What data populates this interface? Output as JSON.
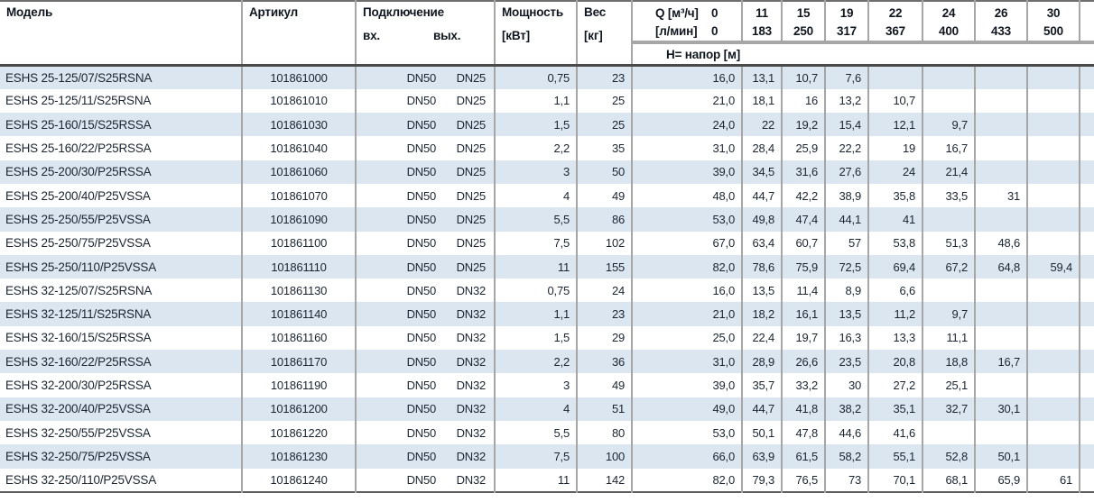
{
  "header": {
    "col_model": "Модель",
    "col_article": "Артикул",
    "col_connection": "Подключение",
    "col_connection_in": "вх.",
    "col_connection_out": "вых.",
    "col_power_l1": "Мощность",
    "col_power_l2": "[кВт]",
    "col_weight_l1": "Вес",
    "col_weight_l2": "[кг]",
    "q_label_l1": "Q [м³/ч]",
    "q_zero_l1": "0",
    "q_label_l2": "[л/мин]",
    "q_zero_l2": "0",
    "q_columns": [
      {
        "m3h": "11",
        "lmin": "183"
      },
      {
        "m3h": "15",
        "lmin": "250"
      },
      {
        "m3h": "19",
        "lmin": "317"
      },
      {
        "m3h": "22",
        "lmin": "367"
      },
      {
        "m3h": "24",
        "lmin": "400"
      },
      {
        "m3h": "26",
        "lmin": "433"
      },
      {
        "m3h": "30",
        "lmin": "500"
      }
    ],
    "head_row_label": "Н= напор [м]"
  },
  "rows": [
    {
      "model": "ESHS 25-125/07/S25RSNA",
      "article": "101861000",
      "dn_in": "DN50",
      "dn_out": "DN25",
      "power": "0,75",
      "weight": "23",
      "h": [
        "16,0",
        "13,1",
        "10,7",
        "7,6",
        "",
        "",
        "",
        ""
      ]
    },
    {
      "model": "ESHS 25-125/11/S25RSNA",
      "article": "101861010",
      "dn_in": "DN50",
      "dn_out": "DN25",
      "power": "1,1",
      "weight": "25",
      "h": [
        "21,0",
        "18,1",
        "16",
        "13,2",
        "10,7",
        "",
        "",
        ""
      ]
    },
    {
      "model": "ESHS 25-160/15/S25RSSA",
      "article": "101861030",
      "dn_in": "DN50",
      "dn_out": "DN25",
      "power": "1,5",
      "weight": "25",
      "h": [
        "24,0",
        "22",
        "19,2",
        "15,4",
        "12,1",
        "9,7",
        "",
        ""
      ]
    },
    {
      "model": "ESHS 25-160/22/P25RSSA",
      "article": "101861040",
      "dn_in": "DN50",
      "dn_out": "DN25",
      "power": "2,2",
      "weight": "35",
      "h": [
        "31,0",
        "28,4",
        "25,9",
        "22,2",
        "19",
        "16,7",
        "",
        ""
      ]
    },
    {
      "model": "ESHS 25-200/30/P25RSSA",
      "article": "101861060",
      "dn_in": "DN50",
      "dn_out": "DN25",
      "power": "3",
      "weight": "50",
      "h": [
        "39,0",
        "34,5",
        "31,6",
        "27,6",
        "24",
        "21,4",
        "",
        ""
      ]
    },
    {
      "model": "ESHS 25-200/40/P25VSSA",
      "article": "101861070",
      "dn_in": "DN50",
      "dn_out": "DN25",
      "power": "4",
      "weight": "49",
      "h": [
        "48,0",
        "44,7",
        "42,2",
        "38,9",
        "35,8",
        "33,5",
        "31",
        ""
      ]
    },
    {
      "model": "ESHS 25-250/55/P25VSSA",
      "article": "101861090",
      "dn_in": "DN50",
      "dn_out": "DN25",
      "power": "5,5",
      "weight": "86",
      "h": [
        "53,0",
        "49,8",
        "47,4",
        "44,1",
        "41",
        "",
        "",
        ""
      ]
    },
    {
      "model": "ESHS 25-250/75/P25VSSA",
      "article": "101861100",
      "dn_in": "DN50",
      "dn_out": "DN25",
      "power": "7,5",
      "weight": "102",
      "h": [
        "67,0",
        "63,4",
        "60,7",
        "57",
        "53,8",
        "51,3",
        "48,6",
        ""
      ]
    },
    {
      "model": "ESHS 25-250/110/P25VSSA",
      "article": "101861110",
      "dn_in": "DN50",
      "dn_out": "DN25",
      "power": "11",
      "weight": "155",
      "h": [
        "82,0",
        "78,6",
        "75,9",
        "72,5",
        "69,4",
        "67,2",
        "64,8",
        "59,4"
      ]
    },
    {
      "model": "ESHS 32-125/07/S25RSNA",
      "article": "101861130",
      "dn_in": "DN50",
      "dn_out": "DN32",
      "power": "0,75",
      "weight": "24",
      "h": [
        "16,0",
        "13,5",
        "11,4",
        "8,9",
        "6,6",
        "",
        "",
        ""
      ]
    },
    {
      "model": "ESHS 32-125/11/S25RSNA",
      "article": "101861140",
      "dn_in": "DN50",
      "dn_out": "DN32",
      "power": "1,1",
      "weight": "23",
      "h": [
        "21,0",
        "18,2",
        "16,1",
        "13,5",
        "11,2",
        "9,7",
        "",
        ""
      ]
    },
    {
      "model": "ESHS 32-160/15/S25RSSA",
      "article": "101861160",
      "dn_in": "DN50",
      "dn_out": "DN32",
      "power": "1,5",
      "weight": "29",
      "h": [
        "25,0",
        "22,4",
        "19,7",
        "16,3",
        "13,3",
        "11,1",
        "",
        ""
      ]
    },
    {
      "model": "ESHS 32-160/22/P25RSSA",
      "article": "101861170",
      "dn_in": "DN50",
      "dn_out": "DN32",
      "power": "2,2",
      "weight": "36",
      "h": [
        "31,0",
        "28,9",
        "26,6",
        "23,5",
        "20,8",
        "18,8",
        "16,7",
        ""
      ]
    },
    {
      "model": "ESHS 32-200/30/P25RSSA",
      "article": "101861190",
      "dn_in": "DN50",
      "dn_out": "DN32",
      "power": "3",
      "weight": "49",
      "h": [
        "39,0",
        "35,7",
        "33,2",
        "30",
        "27,2",
        "25,1",
        "",
        ""
      ]
    },
    {
      "model": "ESHS 32-200/40/P25VSSA",
      "article": "101861200",
      "dn_in": "DN50",
      "dn_out": "DN32",
      "power": "4",
      "weight": "51",
      "h": [
        "49,0",
        "44,7",
        "41,8",
        "38,2",
        "35,1",
        "32,7",
        "30,1",
        ""
      ]
    },
    {
      "model": "ESHS 32-250/55/P25VSSA",
      "article": "101861220",
      "dn_in": "DN50",
      "dn_out": "DN32",
      "power": "5,5",
      "weight": "80",
      "h": [
        "53,0",
        "50,1",
        "47,8",
        "44,6",
        "41,6",
        "",
        "",
        ""
      ]
    },
    {
      "model": "ESHS 32-250/75/P25VSSA",
      "article": "101861230",
      "dn_in": "DN50",
      "dn_out": "DN32",
      "power": "7,5",
      "weight": "100",
      "h": [
        "66,0",
        "63,9",
        "61,5",
        "58,2",
        "55,1",
        "52,8",
        "50,1",
        ""
      ]
    },
    {
      "model": "ESHS 32-250/110/P25VSSA",
      "article": "101861240",
      "dn_in": "DN50",
      "dn_out": "DN32",
      "power": "11",
      "weight": "142",
      "h": [
        "82,0",
        "79,3",
        "76,5",
        "73",
        "70,1",
        "68,1",
        "65,9",
        "61"
      ]
    }
  ],
  "colors": {
    "row_alt_blue": "#dce6f1",
    "grid_gray": "#a6a6a6",
    "header_separator": "#4a4a4a",
    "table_edge": "#6e6e6e",
    "text": "#1b2531"
  }
}
